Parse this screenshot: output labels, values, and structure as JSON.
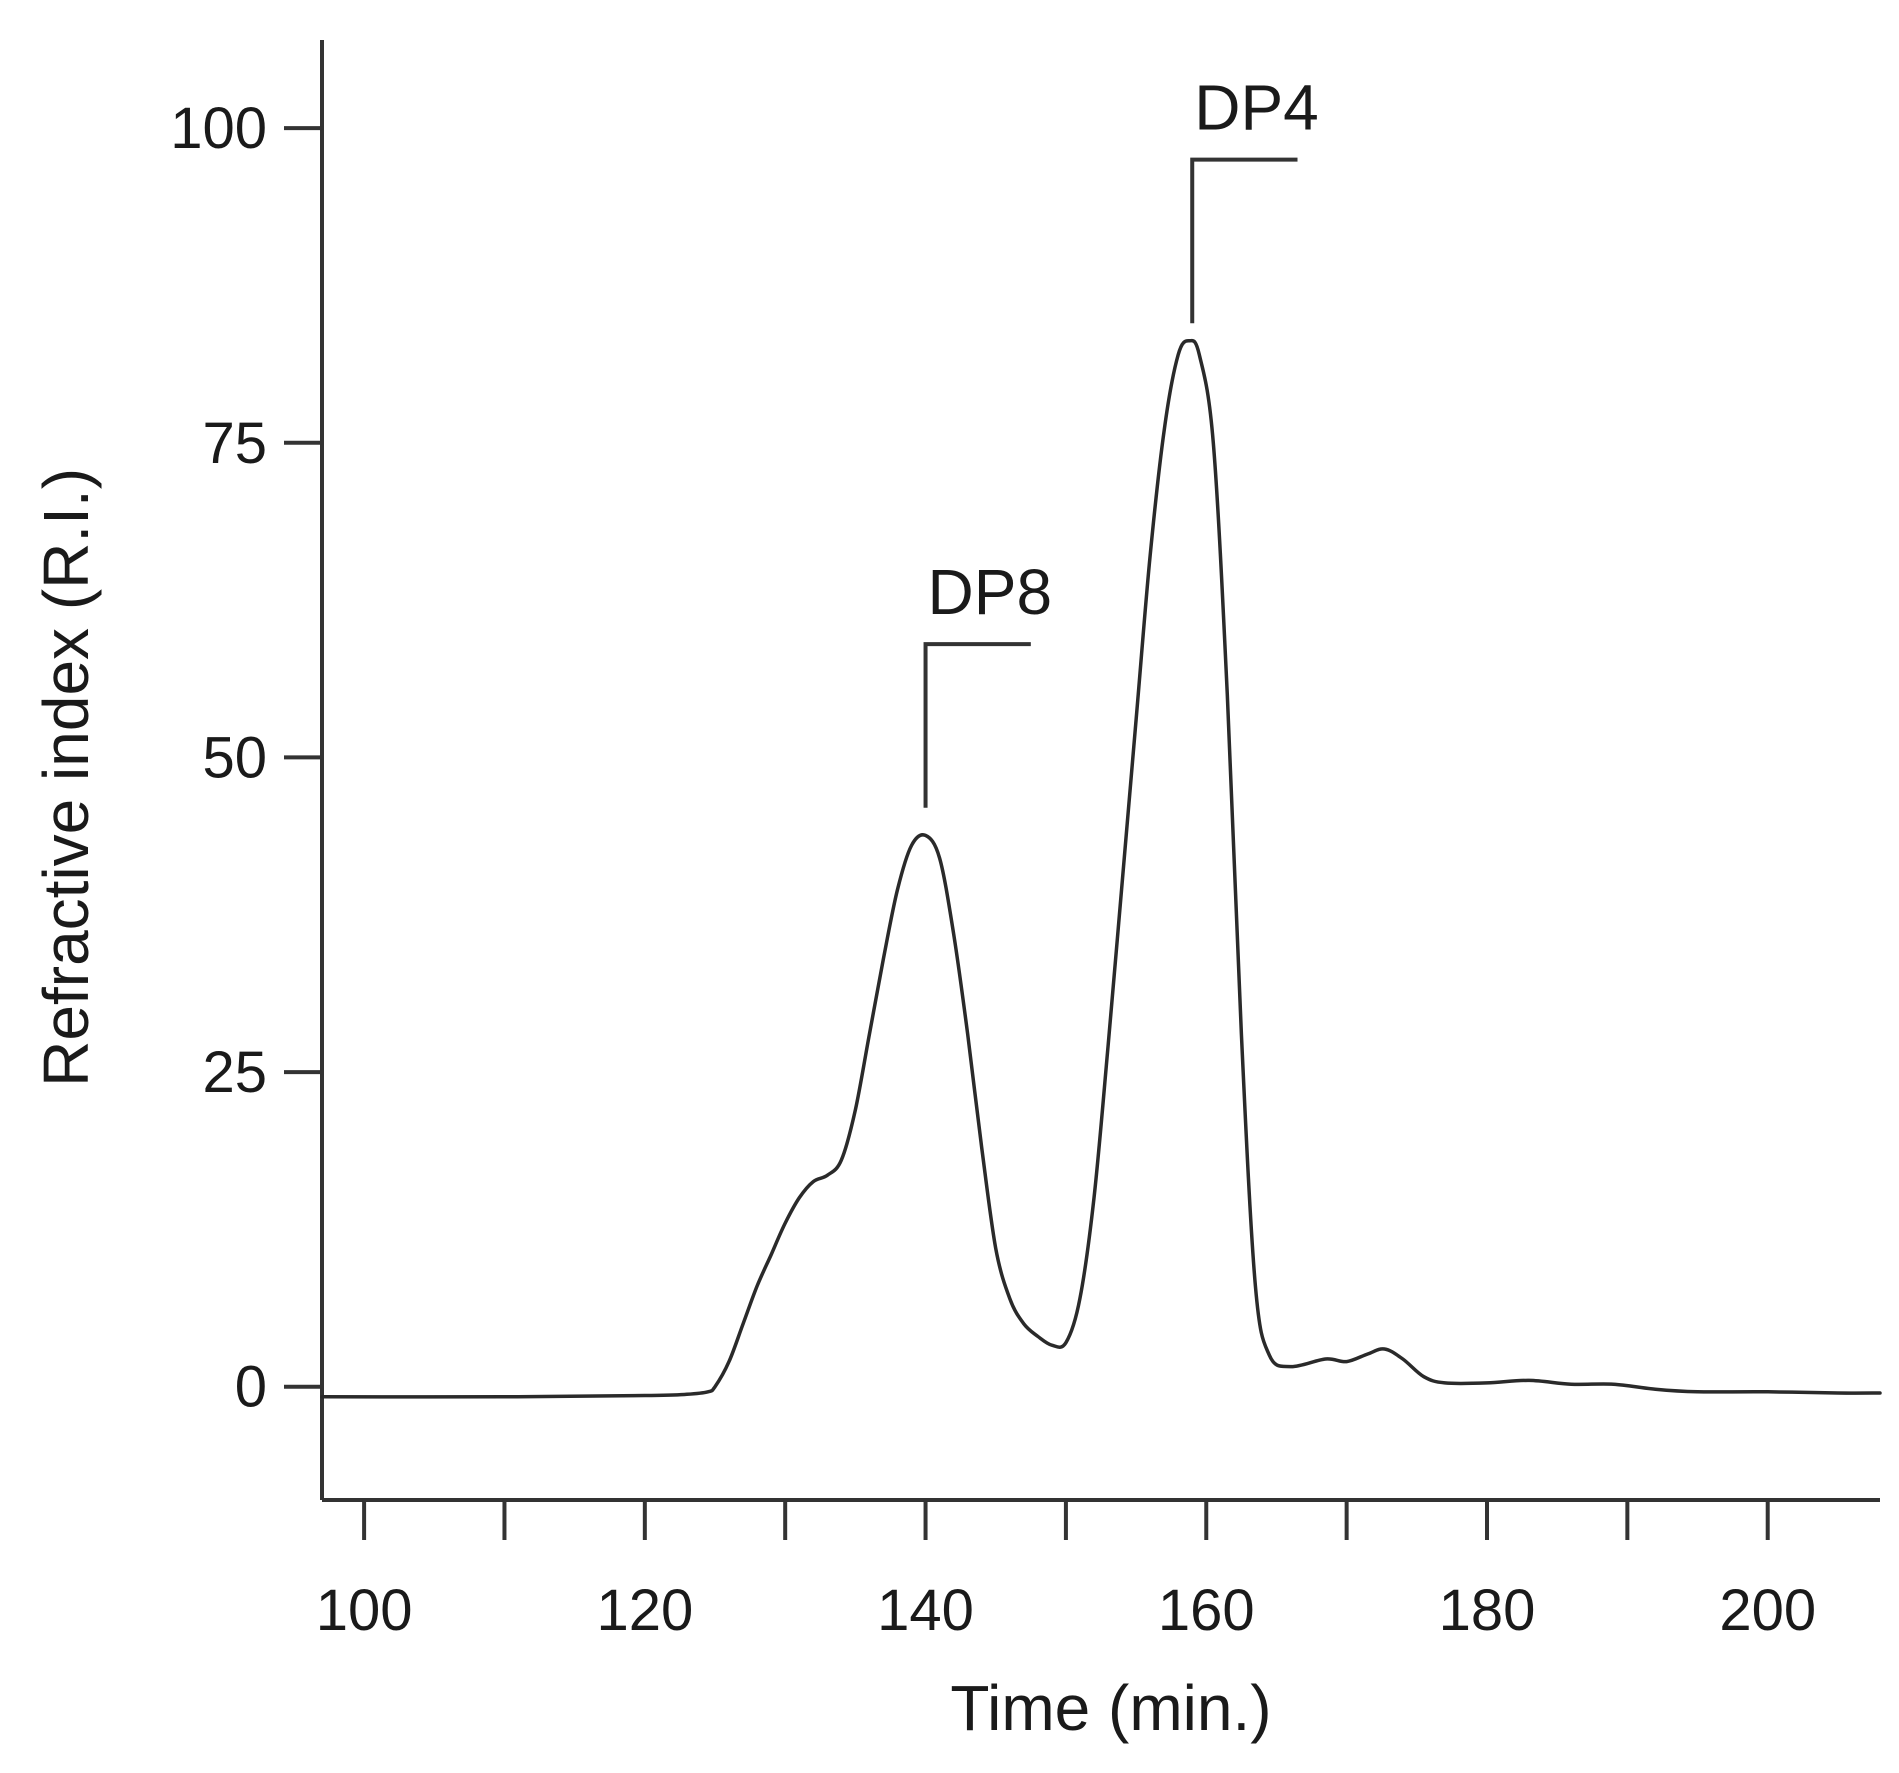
{
  "chart_data": {
    "type": "line",
    "title": "",
    "xlabel": "Time (min.)",
    "ylabel": "Refractive index (R.I.)",
    "xlim": [
      97,
      208
    ],
    "ylim": [
      -9,
      107
    ],
    "x_ticks": [
      100,
      120,
      140,
      160,
      180,
      200
    ],
    "x_minor_ticks": [
      110,
      130,
      150,
      170,
      190
    ],
    "y_ticks": [
      0,
      25,
      50,
      75,
      100
    ],
    "grid": false,
    "legend": "none",
    "line_color": "#2a2a2a",
    "series": [
      {
        "points": [
          [
            97,
            -0.8
          ],
          [
            110,
            -0.8
          ],
          [
            120,
            -0.7
          ],
          [
            123,
            -0.6
          ],
          [
            124.5,
            -0.4
          ],
          [
            125,
            0
          ],
          [
            126,
            2
          ],
          [
            127,
            5
          ],
          [
            128,
            8
          ],
          [
            129,
            10.5
          ],
          [
            130,
            13
          ],
          [
            131,
            15
          ],
          [
            132,
            16.3
          ],
          [
            133,
            16.8
          ],
          [
            134,
            18
          ],
          [
            135,
            22
          ],
          [
            136,
            28
          ],
          [
            137,
            34
          ],
          [
            138,
            39.5
          ],
          [
            139,
            43
          ],
          [
            140,
            43.8
          ],
          [
            141,
            42
          ],
          [
            142,
            36
          ],
          [
            143,
            28
          ],
          [
            144,
            19
          ],
          [
            145,
            11
          ],
          [
            146,
            7
          ],
          [
            147,
            5
          ],
          [
            148,
            4
          ],
          [
            149,
            3.3
          ],
          [
            150,
            3.5
          ],
          [
            151,
            7
          ],
          [
            152,
            15
          ],
          [
            153,
            27
          ],
          [
            154,
            40
          ],
          [
            155,
            53
          ],
          [
            156,
            66
          ],
          [
            157,
            76
          ],
          [
            158,
            82
          ],
          [
            158.8,
            83.1
          ],
          [
            159.5,
            82
          ],
          [
            160.5,
            75
          ],
          [
            161.5,
            55
          ],
          [
            162.5,
            28
          ],
          [
            163.5,
            8
          ],
          [
            164.5,
            2.5
          ],
          [
            166,
            1.6
          ],
          [
            168.5,
            2.2
          ],
          [
            170,
            2
          ],
          [
            171.5,
            2.6
          ],
          [
            172.7,
            3
          ],
          [
            174,
            2.2
          ],
          [
            175.5,
            0.8
          ],
          [
            177,
            0.3
          ],
          [
            180,
            0.3
          ],
          [
            183,
            0.5
          ],
          [
            186,
            0.2
          ],
          [
            189,
            0.2
          ],
          [
            192,
            -0.2
          ],
          [
            195,
            -0.4
          ],
          [
            200,
            -0.4
          ],
          [
            205,
            -0.5
          ],
          [
            208,
            -0.5
          ]
        ]
      }
    ],
    "annotations": [
      {
        "label": "DP8",
        "x": 140,
        "bracket_top": 59,
        "line_bottom": 46,
        "bracket_end_x": 147.5
      },
      {
        "label": "DP4",
        "x": 159,
        "bracket_top": 97.5,
        "line_bottom": 84.5,
        "bracket_end_x": 166.5
      }
    ]
  }
}
